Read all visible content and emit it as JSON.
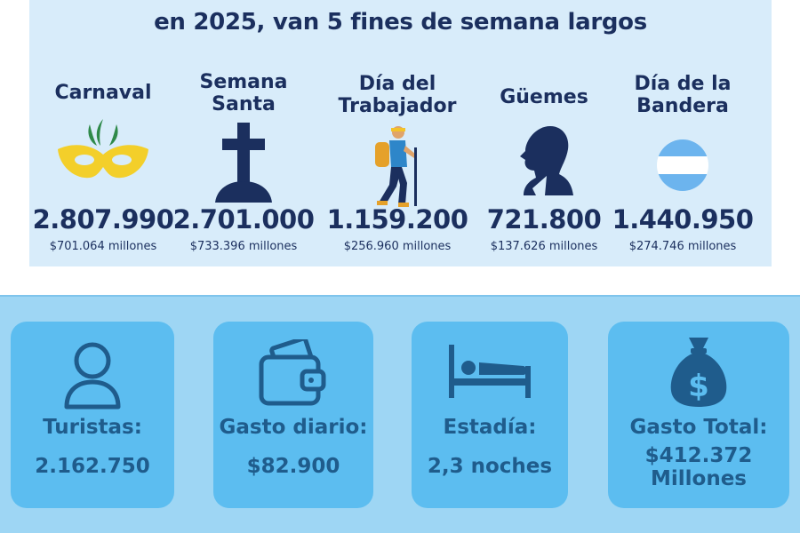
{
  "header": {
    "title": "en 2025, van 5 fines de semana largos"
  },
  "weekends": [
    {
      "name": "Carnaval",
      "icon": "carnival-mask-icon",
      "tourists": "2.807.990",
      "spend": "$701.064 millones"
    },
    {
      "name": "Semana\nSanta",
      "icon": "cross-icon",
      "tourists": "2.701.000",
      "spend": "$733.396 millones"
    },
    {
      "name": "Día del\nTrabajador",
      "icon": "hiker-icon",
      "tourists": "1.159.200",
      "spend": "$256.960 millones"
    },
    {
      "name": "Güemes",
      "icon": "guemes-profile-icon",
      "tourists": "721.800",
      "spend": "$137.626 millones"
    },
    {
      "name": "Día de la\nBandera",
      "icon": "argentina-flag-icon",
      "tourists": "1.440.950",
      "spend": "$274.746 millones"
    }
  ],
  "stats": [
    {
      "label": "Turistas:",
      "value": "2.162.750",
      "icon": "person-icon"
    },
    {
      "label": "Gasto diario:",
      "value": "$82.900",
      "icon": "wallet-icon"
    },
    {
      "label": "Estadía:",
      "value": "2,3 noches",
      "icon": "bed-icon"
    },
    {
      "label": "Gasto Total:",
      "value": "$412.372\nMillones",
      "icon": "money-bag-icon"
    }
  ],
  "colors": {
    "top_background": "#d8ecfa",
    "navy_text": "#1b2f5e",
    "bottom_background": "#9ed6f4",
    "card_background": "#5cbdf0",
    "card_text": "#1f5c8c",
    "mask_yellow": "#f3cf2a",
    "flag_blue": "#6cb4ee"
  }
}
